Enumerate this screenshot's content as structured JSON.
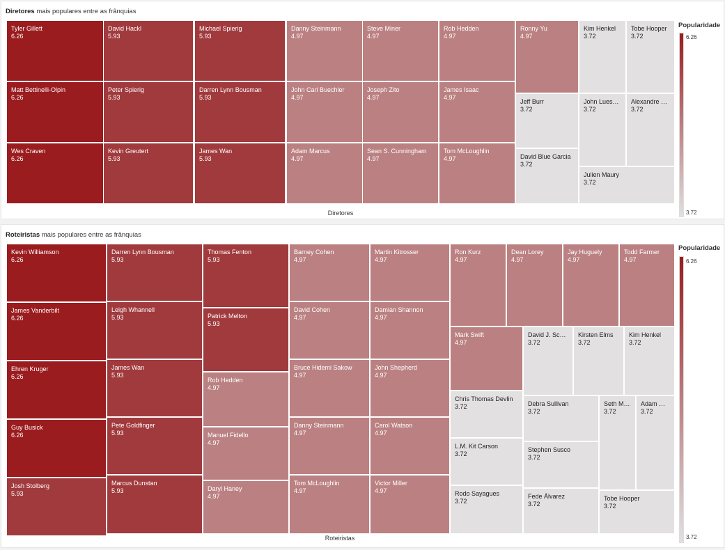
{
  "chart_data": [
    {
      "type": "treemap",
      "title_bold": "Diretores",
      "title_rest": " mais populares entre as frânquias",
      "xlabel": "Diretores",
      "legend": {
        "title": "Popularidade",
        "max": "6.26",
        "min": "3.72",
        "position": "right"
      },
      "colors": {
        "6.26": "#9a1c1f",
        "5.93": "#a13a3d",
        "4.97": "#bb8182",
        "3.72": "#e2e0e1"
      },
      "items": [
        {
          "name": "Tyler Gillett",
          "value": "6.26"
        },
        {
          "name": "Matt Bettinelli-Olpin",
          "value": "6.26"
        },
        {
          "name": "Wes Craven",
          "value": "6.26"
        },
        {
          "name": "David Hackl",
          "value": "5.93"
        },
        {
          "name": "Peter Spierig",
          "value": "5.93"
        },
        {
          "name": "Kevin Greutert",
          "value": "5.93"
        },
        {
          "name": "Michael Spierig",
          "value": "5.93"
        },
        {
          "name": "Darren Lynn Bousman",
          "value": "5.93"
        },
        {
          "name": "James Wan",
          "value": "5.93"
        },
        {
          "name": "Danny Steinmann",
          "value": "4.97"
        },
        {
          "name": "John Carl Buechler",
          "value": "4.97"
        },
        {
          "name": "Adam Marcus",
          "value": "4.97"
        },
        {
          "name": "Steve Miner",
          "value": "4.97"
        },
        {
          "name": "Joseph Zito",
          "value": "4.97"
        },
        {
          "name": "Sean S. Cunningham",
          "value": "4.97"
        },
        {
          "name": "Rob Hedden",
          "value": "4.97"
        },
        {
          "name": "James Isaac",
          "value": "4.97"
        },
        {
          "name": "Tom McLoughlin",
          "value": "4.97"
        },
        {
          "name": "Ronny Yu",
          "value": "4.97"
        },
        {
          "name": "Jeff Burr",
          "value": "3.72"
        },
        {
          "name": "David Blue Garcia",
          "value": "3.72"
        },
        {
          "name": "Kim Henkel",
          "value": "3.72"
        },
        {
          "name": "Tobe Hooper",
          "value": "3.72"
        },
        {
          "name": "John Luess…",
          "value": "3.72"
        },
        {
          "name": "Alexandre …",
          "value": "3.72"
        },
        {
          "name": "Julien Maury",
          "value": "3.72"
        }
      ]
    },
    {
      "type": "treemap",
      "title_bold": "Roteiristas",
      "title_rest": " mais populares entre as frânquias",
      "xlabel": "Roteiristas",
      "legend": {
        "title": "Popularidade",
        "max": "6.26",
        "min": "3.72",
        "position": "right"
      },
      "colors": {
        "6.26": "#9a1c1f",
        "5.93": "#a13a3d",
        "4.97": "#bb8182",
        "3.72": "#e2e0e1"
      },
      "items": [
        {
          "name": "Kevin Williamson",
          "value": "6.26"
        },
        {
          "name": "James Vanderbilt",
          "value": "6.26"
        },
        {
          "name": "Ehren Kruger",
          "value": "6.26"
        },
        {
          "name": "Guy Busick",
          "value": "6.26"
        },
        {
          "name": "Josh Stolberg",
          "value": "5.93"
        },
        {
          "name": "Darren Lynn Bousman",
          "value": "5.93"
        },
        {
          "name": "Leigh Whannell",
          "value": "5.93"
        },
        {
          "name": "James Wan",
          "value": "5.93"
        },
        {
          "name": "Pete Goldfinger",
          "value": "5.93"
        },
        {
          "name": "Marcus Dunstan",
          "value": "5.93"
        },
        {
          "name": "Thomas Fenton",
          "value": "5.93"
        },
        {
          "name": "Patrick Melton",
          "value": "5.93"
        },
        {
          "name": "Rob Hedden",
          "value": "4.97"
        },
        {
          "name": "Manuel Fidello",
          "value": "4.97"
        },
        {
          "name": "Daryl Haney",
          "value": "4.97"
        },
        {
          "name": "Barney Cohen",
          "value": "4.97"
        },
        {
          "name": "David Cohen",
          "value": "4.97"
        },
        {
          "name": "Bruce Hidemi Sakow",
          "value": "4.97"
        },
        {
          "name": "Danny Steinmann",
          "value": "4.97"
        },
        {
          "name": "Tom McLoughlin",
          "value": "4.97"
        },
        {
          "name": "Martin Kitrosser",
          "value": "4.97"
        },
        {
          "name": "Damian Shannon",
          "value": "4.97"
        },
        {
          "name": "John Shepherd",
          "value": "4.97"
        },
        {
          "name": "Carol Watson",
          "value": "4.97"
        },
        {
          "name": "Victor Miller",
          "value": "4.97"
        },
        {
          "name": "Ron Kurz",
          "value": "4.97"
        },
        {
          "name": "Dean Lorey",
          "value": "4.97"
        },
        {
          "name": "Jay Huguely",
          "value": "4.97"
        },
        {
          "name": "Todd Farmer",
          "value": "4.97"
        },
        {
          "name": "Mark Swift",
          "value": "4.97"
        },
        {
          "name": "Chris Thomas Devlin",
          "value": "3.72"
        },
        {
          "name": "L.M. Kit Carson",
          "value": "3.72"
        },
        {
          "name": "Rodo Sayagues",
          "value": "3.72"
        },
        {
          "name": "David J. Sch…",
          "value": "3.72"
        },
        {
          "name": "Kirsten Elms",
          "value": "3.72"
        },
        {
          "name": "Kim Henkel",
          "value": "3.72"
        },
        {
          "name": "Debra Sullivan",
          "value": "3.72"
        },
        {
          "name": "Seth M…",
          "value": "3.72"
        },
        {
          "name": "Adam …",
          "value": "3.72"
        },
        {
          "name": "Stephen Susco",
          "value": "3.72"
        },
        {
          "name": "Fede Álvarez",
          "value": "3.72"
        },
        {
          "name": "Tobe Hooper",
          "value": "3.72"
        }
      ]
    }
  ]
}
